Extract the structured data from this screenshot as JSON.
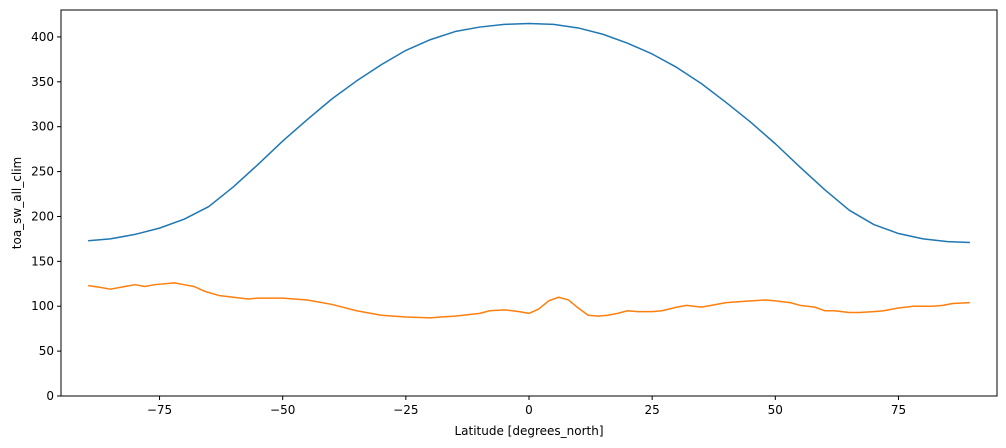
{
  "chart_data": {
    "type": "line",
    "title": "",
    "xlabel": "Latitude [degrees_north]",
    "ylabel": "toa_sw_all_clim",
    "xlim": [
      -95,
      95
    ],
    "ylim": [
      0,
      430
    ],
    "xticks": [
      -75,
      -50,
      -25,
      0,
      25,
      50,
      75
    ],
    "xtick_labels": [
      "−75",
      "−50",
      "−25",
      "0",
      "25",
      "50",
      "75"
    ],
    "yticks": [
      0,
      50,
      100,
      150,
      200,
      250,
      300,
      350,
      400
    ],
    "ytick_labels": [
      "0",
      "50",
      "100",
      "150",
      "200",
      "250",
      "300",
      "350",
      "400"
    ],
    "grid": false,
    "legend": "none",
    "series": [
      {
        "color": "#1f77b4",
        "x": [
          -89.5,
          -85,
          -80,
          -75,
          -70,
          -65,
          -60,
          -55,
          -50,
          -45,
          -40,
          -35,
          -30,
          -25,
          -20,
          -15,
          -10,
          -5,
          0,
          5,
          10,
          15,
          20,
          25,
          30,
          35,
          40,
          45,
          50,
          55,
          60,
          65,
          70,
          75,
          80,
          85,
          89.5
        ],
        "y": [
          173,
          175,
          180,
          187,
          197,
          211,
          233,
          258,
          284,
          308,
          331,
          351,
          369,
          385,
          397,
          406,
          411,
          414,
          415,
          414,
          410,
          403,
          393,
          381,
          366,
          348,
          327,
          305,
          281,
          255,
          230,
          207,
          191,
          181,
          175,
          172,
          171
        ]
      },
      {
        "color": "#ff7f0e",
        "x": [
          -89.5,
          -87,
          -85,
          -80,
          -78,
          -76,
          -72,
          -70,
          -68,
          -66,
          -63,
          -60,
          -57,
          -55,
          -50,
          -45,
          -40,
          -35,
          -30,
          -25,
          -20,
          -18,
          -15,
          -10,
          -8,
          -5,
          -2,
          0,
          2,
          4,
          6,
          8,
          10,
          12,
          14,
          16,
          18,
          20,
          22,
          25,
          27,
          30,
          32,
          35,
          37,
          40,
          45,
          48,
          50,
          53,
          55,
          58,
          60,
          62,
          65,
          67,
          70,
          72,
          75,
          78,
          80,
          82,
          84,
          86,
          89.5
        ],
        "y": [
          123,
          121,
          119,
          124,
          122,
          124,
          126,
          124,
          122,
          117,
          112,
          110,
          108,
          109,
          109,
          107,
          102,
          95,
          90,
          88,
          87,
          88,
          89,
          92,
          95,
          96,
          94,
          92,
          97,
          106,
          110,
          107,
          98,
          90,
          89,
          90,
          92,
          95,
          94,
          94,
          95,
          99,
          101,
          99,
          101,
          104,
          106,
          107,
          106,
          104,
          101,
          99,
          95,
          95,
          93,
          93,
          94,
          95,
          98,
          100,
          100,
          100,
          101,
          103,
          104
        ]
      }
    ]
  }
}
